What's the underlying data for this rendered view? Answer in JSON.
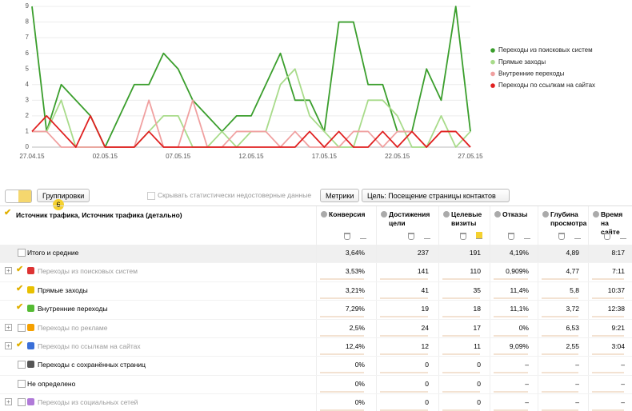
{
  "chart_data": {
    "type": "line",
    "categories": [
      "27.04.15",
      null,
      null,
      null,
      null,
      "02.05.15",
      null,
      null,
      null,
      null,
      "07.05.15",
      null,
      null,
      null,
      null,
      "12.05.15",
      null,
      null,
      null,
      null,
      "17.05.15",
      null,
      null,
      null,
      null,
      "22.05.15",
      null,
      null,
      null,
      null,
      "27.05.15"
    ],
    "ylim": [
      0,
      9
    ],
    "yticks": [
      0,
      1,
      2,
      3,
      4,
      5,
      6,
      7,
      8,
      9
    ],
    "grid": true,
    "legend": "right",
    "series": [
      {
        "name": "Переходы из поисковых систем",
        "color": "#3a9e2c",
        "values": [
          9,
          1,
          4,
          3,
          2,
          0,
          2,
          4,
          4,
          6,
          5,
          3,
          2,
          1,
          2,
          2,
          4,
          6,
          3,
          3,
          1,
          8,
          8,
          4,
          4,
          1,
          1,
          5,
          3,
          9,
          1
        ]
      },
      {
        "name": "Прямые заходы",
        "color": "#a8db8a",
        "values": [
          1,
          1,
          3,
          0,
          0,
          0,
          0,
          0,
          1,
          2,
          2,
          0,
          0,
          1,
          0,
          1,
          1,
          4,
          5,
          2,
          1,
          0,
          0,
          3,
          3,
          2,
          0,
          0,
          2,
          0,
          1
        ]
      },
      {
        "name": "Внутренние переходы",
        "color": "#f0a0a0",
        "values": [
          1,
          1,
          0,
          0,
          0,
          0,
          0,
          0,
          3,
          0,
          0,
          3,
          0,
          0,
          1,
          1,
          1,
          0,
          1,
          0,
          0,
          0,
          1,
          1,
          0,
          1,
          1,
          0,
          1,
          1,
          0
        ]
      },
      {
        "name": "Переходы по ссылкам на сайтах",
        "color": "#e02020",
        "values": [
          1,
          2,
          1,
          0,
          2,
          0,
          0,
          0,
          1,
          0,
          0,
          0,
          0,
          0,
          0,
          0,
          0,
          0,
          0,
          1,
          0,
          1,
          0,
          0,
          1,
          0,
          1,
          0,
          1,
          1,
          0
        ]
      }
    ]
  },
  "toolbar": {
    "grouping_button": "Группировки",
    "grouping_count": 6,
    "hide_checkbox": "Скрывать статистически недостоверные данные",
    "metrics_button": "Метрики",
    "goal_select": "Цель: Посещение страницы контактов"
  },
  "table": {
    "dimension_header": "Источник трафика, Источник трафика (детально)",
    "columns": [
      "Конверсия",
      "Достижения цели",
      "Целевые визиты",
      "Отказы",
      "Глубина просмотра",
      "Время на сайте"
    ],
    "totals": {
      "label": "Итого и средние",
      "cells": [
        "3,64%",
        "237",
        "191",
        "4,19%",
        "4,89",
        "8:17"
      ]
    },
    "rows": [
      {
        "label": "Переходы из поисковых систем",
        "checked": true,
        "cells": [
          "3,53%",
          "141",
          "110",
          "0,909%",
          "4,77",
          "7:11"
        ]
      },
      {
        "label": "Прямые заходы",
        "checked": true,
        "cells": [
          "3,21%",
          "41",
          "35",
          "11,4%",
          "5,8",
          "10:37"
        ]
      },
      {
        "label": "Внутренние переходы",
        "checked": true,
        "cells": [
          "7,29%",
          "19",
          "18",
          "11,1%",
          "3,72",
          "12:38"
        ]
      },
      {
        "label": "Переходы по рекламе",
        "checked": false,
        "cells": [
          "2,5%",
          "24",
          "17",
          "0%",
          "6,53",
          "9:21"
        ]
      },
      {
        "label": "Переходы по ссылкам на сайтах",
        "checked": true,
        "cells": [
          "12,4%",
          "12",
          "11",
          "9,09%",
          "2,55",
          "3:04"
        ]
      },
      {
        "label": "Переходы с сохранённых страниц",
        "checked": false,
        "cells": [
          "0%",
          "0",
          "0",
          "–",
          "–",
          "–"
        ]
      },
      {
        "label": "Не определено",
        "checked": false,
        "cells": [
          "0%",
          "0",
          "0",
          "–",
          "–",
          "–"
        ]
      },
      {
        "label": "Переходы из социальных сетей",
        "checked": false,
        "cells": [
          "0%",
          "0",
          "0",
          "–",
          "–",
          "–"
        ]
      }
    ]
  }
}
